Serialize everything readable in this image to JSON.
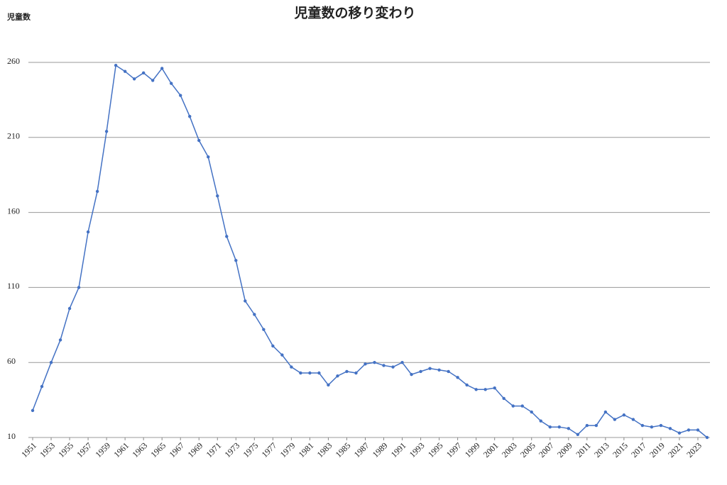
{
  "chart_data": {
    "type": "line",
    "title": "児童数の移り変わり",
    "y_label": "児童数",
    "x": [
      1951,
      1952,
      1953,
      1954,
      1955,
      1956,
      1957,
      1958,
      1959,
      1960,
      1961,
      1962,
      1963,
      1964,
      1965,
      1966,
      1967,
      1968,
      1969,
      1970,
      1971,
      1972,
      1973,
      1974,
      1975,
      1976,
      1977,
      1978,
      1979,
      1980,
      1981,
      1982,
      1983,
      1984,
      1985,
      1986,
      1987,
      1988,
      1989,
      1990,
      1991,
      1992,
      1993,
      1994,
      1995,
      1996,
      1997,
      1998,
      1999,
      2000,
      2001,
      2002,
      2003,
      2004,
      2005,
      2006,
      2007,
      2008,
      2009,
      2010,
      2011,
      2012,
      2013,
      2014,
      2015,
      2016,
      2017,
      2018,
      2019,
      2020,
      2021,
      2022,
      2023,
      2024
    ],
    "values": [
      28,
      44,
      60,
      75,
      96,
      110,
      147,
      174,
      214,
      258,
      254,
      249,
      253,
      248,
      256,
      246,
      238,
      224,
      208,
      197,
      171,
      144,
      128,
      101,
      92,
      82,
      71,
      65,
      57,
      53,
      53,
      53,
      45,
      51,
      54,
      53,
      59,
      60,
      58,
      57,
      60,
      52,
      54,
      56,
      55,
      54,
      50,
      45,
      42,
      42,
      43,
      36,
      31,
      31,
      27,
      21,
      17,
      17,
      16,
      12,
      18,
      18,
      27,
      22,
      25,
      22,
      18,
      17,
      18,
      16,
      13,
      15,
      15,
      10
    ],
    "color": "#4472c4",
    "xlim": [
      1951,
      2024
    ],
    "xticks": [
      1951,
      1953,
      1955,
      1957,
      1959,
      1961,
      1963,
      1965,
      1967,
      1969,
      1971,
      1973,
      1975,
      1977,
      1979,
      1981,
      1983,
      1985,
      1987,
      1989,
      1991,
      1993,
      1995,
      1997,
      1999,
      2001,
      2003,
      2005,
      2007,
      2009,
      2011,
      2013,
      2015,
      2017,
      2019,
      2021,
      2023
    ],
    "ylim": [
      10,
      260
    ],
    "yticks": [
      10,
      60,
      110,
      160,
      210,
      260
    ],
    "grid": true
  }
}
